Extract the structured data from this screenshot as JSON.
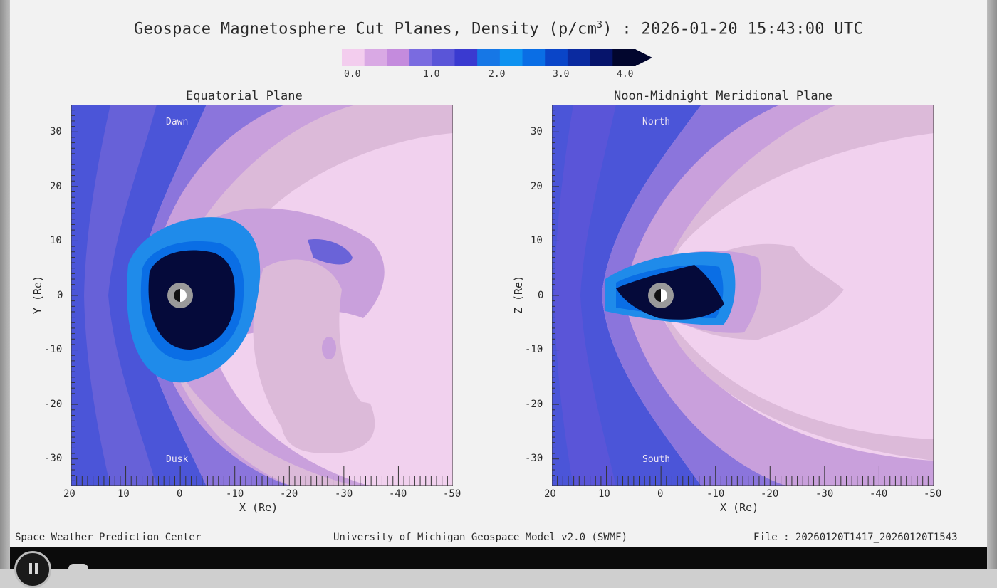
{
  "title_main": "Geospace Magnetosphere Cut Planes, Density (p/cm",
  "title_sup": "3",
  "title_tail": ") : 2026-01-20 15:43:00 UTC",
  "colorbar": {
    "labels": [
      "0.0",
      "1.0",
      "2.0",
      "3.0",
      "4.0"
    ],
    "colors": [
      "#f3cdee",
      "#d9a9e4",
      "#c48bdd",
      "#7a6be0",
      "#5a55d8",
      "#3a3ad0",
      "#1677e6",
      "#0d92f0",
      "#0a6ee5",
      "#0a45c8",
      "#0a2aa0",
      "#06146b",
      "#02062e"
    ]
  },
  "panel_left": {
    "title": "Equatorial Plane",
    "ylabel": "Y (Re)",
    "xlabel": "X (Re)",
    "top_region": "Dawn",
    "bottom_region": "Dusk"
  },
  "panel_right": {
    "title": "Noon-Midnight Meridional Plane",
    "ylabel": "Z (Re)",
    "xlabel": "X (Re)",
    "top_region": "North",
    "bottom_region": "South"
  },
  "x_ticks": [
    "20",
    "10",
    "0",
    "-10",
    "-20",
    "-30",
    "-40",
    "-50"
  ],
  "y_ticks": [
    "30",
    "20",
    "10",
    "0",
    "-10",
    "-20",
    "-30"
  ],
  "footer": {
    "left": "Space Weather Prediction Center",
    "mid": "University of Michigan Geospace Model v2.0 (SWMF)",
    "right": "File : 20260120T1417_20260120T1543"
  },
  "colors": {
    "pink_bg": "#f1d1ee",
    "mauve": "#dcbad9",
    "lavender": "#c9a0dc",
    "purple": "#a889da",
    "blue_purple": "#6a63d8",
    "blue": "#4b55d8",
    "sky": "#1f8bea",
    "core": "#050a3a"
  }
}
